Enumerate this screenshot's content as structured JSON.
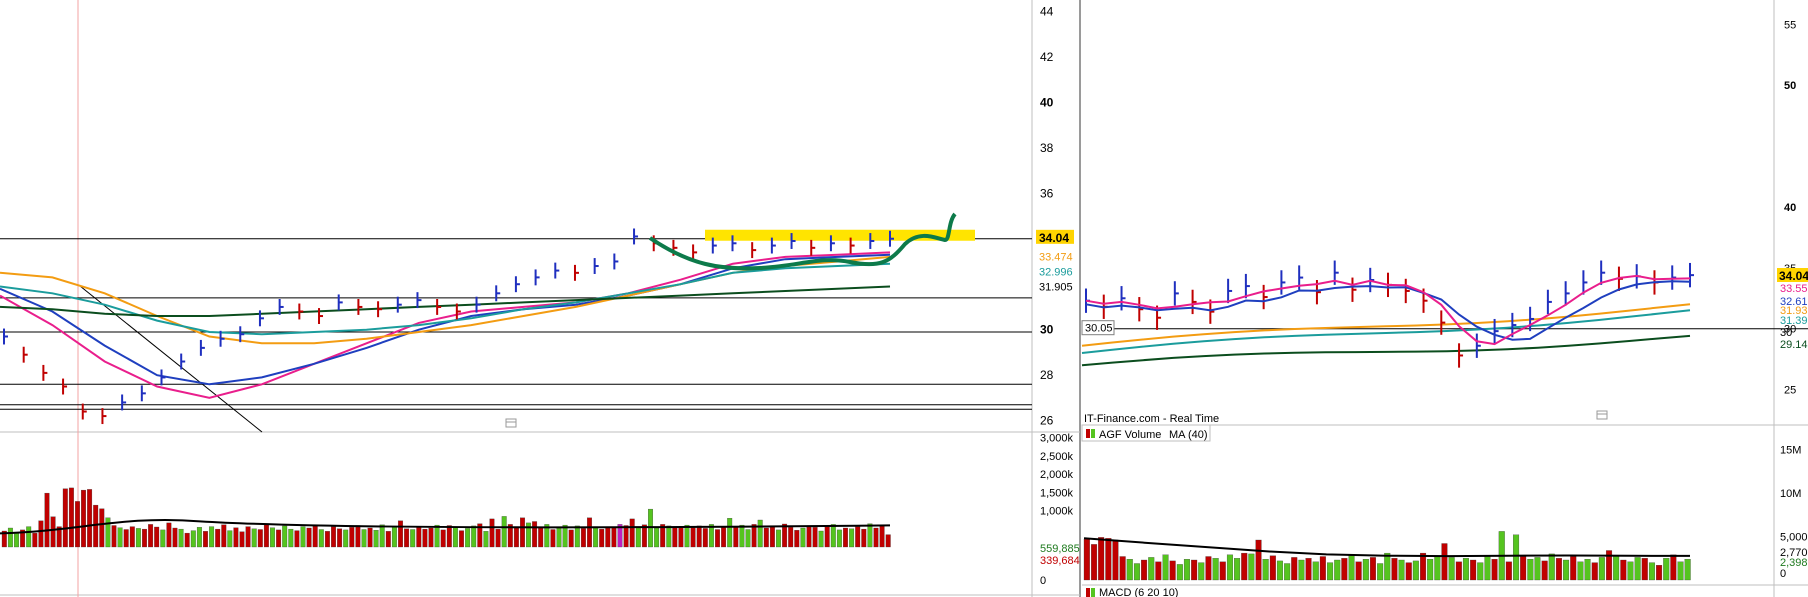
{
  "chart_data": [
    {
      "type": "bar",
      "panel": "left-price",
      "annotation": "yellow resistance zone with green projected path",
      "y_ticks": [
        "44",
        "42",
        "40",
        "38",
        "36",
        "30",
        "28",
        "26"
      ],
      "price_labels": [
        {
          "text": "34.04",
          "role": "last price",
          "color": "#ffd400"
        },
        {
          "text": "33.474",
          "role": "ma",
          "color": "#f39c12"
        },
        {
          "text": "32.996",
          "role": "ma",
          "color": "#1b9c9c"
        },
        {
          "text": "31.905",
          "role": "horizontal line"
        }
      ],
      "horizontal_levels": [
        34.0,
        31.4,
        29.9,
        27.6,
        26.7,
        26.5
      ],
      "ylim": [
        25.5,
        44.5
      ],
      "bars": [
        29.7,
        28.9,
        28.1,
        27.5,
        26.4,
        26.2,
        26.8,
        27.2,
        27.9,
        28.6,
        29.2,
        29.6,
        29.8,
        30.5,
        31.0,
        30.8,
        30.6,
        31.2,
        31.0,
        30.9,
        31.1,
        31.3,
        31.0,
        30.8,
        31.1,
        31.6,
        32.0,
        32.3,
        32.6,
        32.5,
        32.8,
        33.0,
        34.1,
        33.8,
        33.6,
        33.4,
        33.7,
        33.8,
        33.5,
        33.7,
        33.9,
        33.6,
        33.8,
        33.7,
        33.9,
        34.0
      ],
      "moving_averages": [
        {
          "color": "#e91e8c",
          "values": [
            31.5,
            30.2,
            28.6,
            27.5,
            27.0,
            27.6,
            28.5,
            29.4,
            30.3,
            30.8,
            31.0,
            31.2,
            31.6,
            32.2,
            32.9,
            33.2,
            33.3,
            33.4
          ]
        },
        {
          "color": "#1f3fbf",
          "values": [
            31.8,
            30.8,
            29.3,
            28.0,
            27.6,
            27.9,
            28.5,
            29.2,
            30.0,
            30.6,
            30.9,
            31.1,
            31.5,
            32.0,
            32.7,
            33.1,
            33.2,
            33.3
          ]
        },
        {
          "color": "#f39c12",
          "values": [
            32.5,
            32.3,
            31.6,
            30.6,
            29.7,
            29.4,
            29.4,
            29.6,
            29.9,
            30.2,
            30.6,
            31.0,
            31.5,
            32.0,
            32.5,
            32.8,
            33.0,
            33.2
          ]
        },
        {
          "color": "#1b9c9c",
          "values": [
            31.9,
            31.6,
            31.1,
            30.4,
            29.9,
            29.8,
            29.9,
            30.0,
            30.2,
            30.5,
            30.9,
            31.2,
            31.6,
            32.0,
            32.5,
            32.7,
            32.8,
            32.9
          ]
        },
        {
          "color": "#0b4d1e",
          "values": [
            31.0,
            30.9,
            30.7,
            30.6,
            30.6,
            30.7,
            30.8,
            30.9,
            31.0,
            31.1,
            31.2,
            31.3,
            31.4,
            31.5,
            31.6,
            31.7,
            31.8,
            31.9
          ]
        }
      ]
    },
    {
      "type": "bar",
      "panel": "right-price",
      "y_ticks": [
        "55",
        "50",
        "40",
        "35",
        "30",
        "25"
      ],
      "price_labels": [
        {
          "text": "34.04",
          "color": "#ffd400"
        },
        {
          "text": "33.55",
          "color": "#e91e8c"
        },
        {
          "text": "32.61",
          "color": "#1f3fbf"
        },
        {
          "text": "31.93",
          "color": "#f39c12"
        },
        {
          "text": "31.39",
          "color": "#1b9c9c"
        },
        {
          "text": "30"
        },
        {
          "text": "29.14",
          "color": "#0b4d1e"
        }
      ],
      "left_tag": "30.05",
      "source_label": "IT-Finance.com - Real Time",
      "ylim": [
        22.5,
        57
      ],
      "bars": [
        32.3,
        31.8,
        32.5,
        31.6,
        30.9,
        32.9,
        32.2,
        31.4,
        33.1,
        33.5,
        32.6,
        33.8,
        34.2,
        33.0,
        34.6,
        33.2,
        34.0,
        33.6,
        33.1,
        32.3,
        30.5,
        27.8,
        28.6,
        29.8,
        30.3,
        30.8,
        32.2,
        32.9,
        33.8,
        34.6,
        34.1,
        34.3,
        33.8,
        34.2,
        34.4
      ]
    },
    {
      "type": "bar",
      "panel": "left-volume",
      "y_ticks": [
        "3,000k",
        "2,500k",
        "2,000k",
        "1,500k",
        "1,000k"
      ],
      "price_labels": [
        {
          "text": "559,885",
          "color": "#1f7a1f"
        },
        {
          "text": "339,684",
          "color": "#c00000"
        },
        {
          "text": "0"
        }
      ],
      "ylim": [
        0,
        3100000
      ],
      "ma_level": 540000,
      "values": [
        440000,
        520000,
        410000,
        470000,
        560000,
        380000,
        720000,
        1480000,
        830000,
        560000,
        1600000,
        1620000,
        1250000,
        1560000,
        1580000,
        1150000,
        1050000,
        800000,
        590000,
        530000,
        480000,
        560000,
        510000,
        490000,
        620000,
        550000,
        470000,
        660000,
        520000,
        490000,
        380000,
        450000,
        540000,
        430000,
        560000,
        490000,
        610000,
        450000,
        530000,
        420000,
        560000,
        500000,
        480000,
        620000,
        530000,
        470000,
        580000,
        490000,
        450000,
        560000,
        520000,
        610000,
        480000,
        430000,
        560000,
        500000,
        470000,
        540000,
        590000,
        480000,
        520000,
        460000,
        610000,
        430000,
        550000,
        720000,
        500000,
        480000,
        560000,
        490000,
        520000,
        600000,
        470000,
        590000,
        530000,
        450000,
        510000,
        580000,
        640000,
        430000,
        770000,
        490000,
        840000,
        620000,
        560000,
        800000,
        660000,
        700000,
        540000,
        620000,
        480000,
        520000,
        600000,
        470000,
        580000,
        510000,
        800000,
        560000,
        490000,
        530000,
        540000,
        620000,
        590000,
        770000,
        560000,
        610000,
        1040000,
        520000,
        620000,
        580000,
        560000,
        540000,
        600000,
        530000,
        580000,
        510000,
        620000,
        480000,
        570000,
        790000,
        540000,
        600000,
        480000,
        620000,
        740000,
        520000,
        560000,
        470000,
        630000,
        540000,
        460000,
        520000,
        560000,
        540000,
        440000,
        580000,
        620000,
        470000,
        520000,
        500000,
        560000,
        490000,
        640000,
        520000,
        600000,
        340000
      ]
    },
    {
      "type": "bar",
      "panel": "right-volume",
      "title": "AGF Volume",
      "ma_label": "MA (40)",
      "y_ticks": [
        "15M",
        "10M",
        "5,000k"
      ],
      "price_labels": [
        {
          "text": "2,770"
        },
        {
          "text": "2,398",
          "color": "#1f7a1f"
        },
        {
          "text": "0"
        }
      ],
      "ylim": [
        0,
        17500000
      ],
      "ma_values": [
        4800000,
        4300000,
        3800000,
        3300000,
        2950000,
        2800000,
        2750000,
        2800000,
        2820000,
        2790000,
        2770000
      ],
      "values": [
        4700000,
        4100000,
        4900000,
        4800000,
        4600000,
        2700000,
        2400000,
        1900000,
        2300000,
        2600000,
        2100000,
        2900000,
        2200000,
        1800000,
        2400000,
        2300000,
        2000000,
        2700000,
        2500000,
        2100000,
        2900000,
        2500000,
        3100000,
        3000000,
        4600000,
        2400000,
        2800000,
        2200000,
        1900000,
        2600000,
        2300000,
        2500000,
        2100000,
        2700000,
        2000000,
        2300000,
        2500000,
        2800000,
        2100000,
        2400000,
        2600000,
        1900000,
        3100000,
        2500000,
        2300000,
        2000000,
        2200000,
        3100000,
        2400000,
        2700000,
        4200000,
        2600000,
        2100000,
        2500000,
        2300000,
        2000000,
        2800000,
        2400000,
        5600000,
        2100000,
        5200000,
        2700000,
        2400000,
        2600000,
        2200000,
        3000000,
        2500000,
        2300000,
        2700000,
        2100000,
        2400000,
        2000000,
        2600000,
        3400000,
        2800000,
        2300000,
        2100000,
        2600000,
        2500000,
        2000000,
        1700000,
        2500000,
        2900000,
        2100000,
        2400000
      ]
    }
  ],
  "footer": {
    "macd_label": "MACD (6 20 10)"
  }
}
